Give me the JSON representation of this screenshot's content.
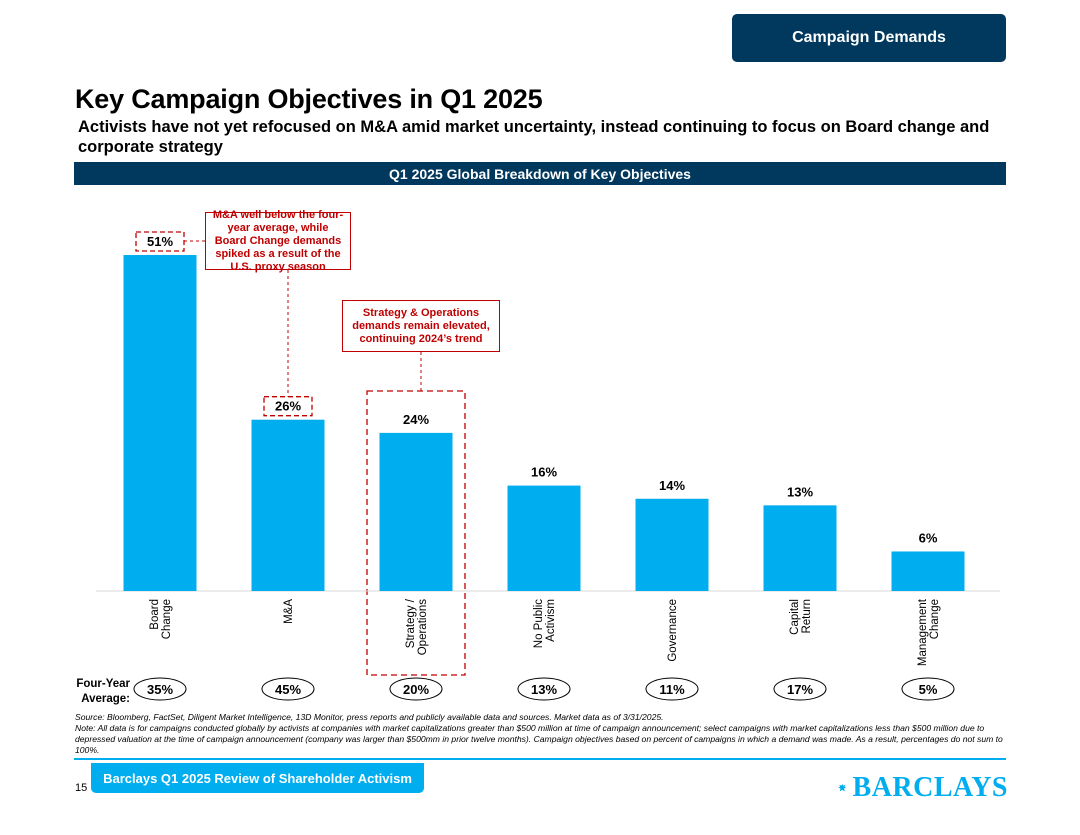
{
  "header": {
    "badge": "Campaign Demands"
  },
  "title": "Key Campaign Objectives in Q1 2025",
  "subtitle": "Activists have not yet refocused on M&A amid market uncertainty, instead continuing to focus on Board change and corporate strategy",
  "section_title": "Q1 2025 Global Breakdown of Key Objectives",
  "callouts": {
    "board_vs_ma": "M&A well below the four-year average, while Board Change demands spiked as a result of the U.S. proxy season",
    "strategy": "Strategy & Operations demands remain elevated, continuing 2024’s trend"
  },
  "chart_data": {
    "type": "bar",
    "title": "Q1 2025 Global Breakdown of Key Objectives",
    "categories": [
      [
        "Board",
        "Change"
      ],
      [
        "M&A"
      ],
      [
        "Strategy /",
        "Operations"
      ],
      [
        "No Public",
        "Activism"
      ],
      [
        "Governance"
      ],
      [
        "Capital",
        "Return"
      ],
      [
        "Management",
        "Change"
      ]
    ],
    "values": [
      51,
      26,
      24,
      16,
      14,
      13,
      6
    ],
    "value_labels": [
      "51%",
      "26%",
      "24%",
      "16%",
      "14%",
      "13%",
      "6%"
    ],
    "four_year_average": [
      35,
      45,
      20,
      13,
      11,
      17,
      5
    ],
    "four_year_average_labels": [
      "35%",
      "45%",
      "20%",
      "13%",
      "11%",
      "17%",
      "5%"
    ],
    "ylim": [
      0,
      51
    ],
    "color": "#00aeef",
    "highlighted_values": [
      0,
      1
    ],
    "highlighted_category": 2
  },
  "avg_title": "Four-Year Average:",
  "footnotes": {
    "source": "Source: Bloomberg, FactSet, Diligent Market Intelligence, 13D Monitor, press reports and publicly available data and sources. Market data as of 3/31/2025.",
    "note": "Note: All data is for campaigns conducted globally by activists at companies with market capitalizations greater than $500 million at time of campaign announcement; select campaigns with market capitalizations less than $500 million due to depressed valuation at the time of campaign announcement (company was larger than $500mm in prior twelve months). Campaign objectives based on percent of campaigns in which a demand was made. As a result, percentages do not sum to 100%."
  },
  "footer": {
    "page_number": "15",
    "tab": "Barclays Q1 2025 Review of Shareholder Activism",
    "logo_text": "BARCLAYS"
  },
  "colors": {
    "navy": "#00395d",
    "cyan": "#00aeef",
    "red": "#c00000"
  }
}
